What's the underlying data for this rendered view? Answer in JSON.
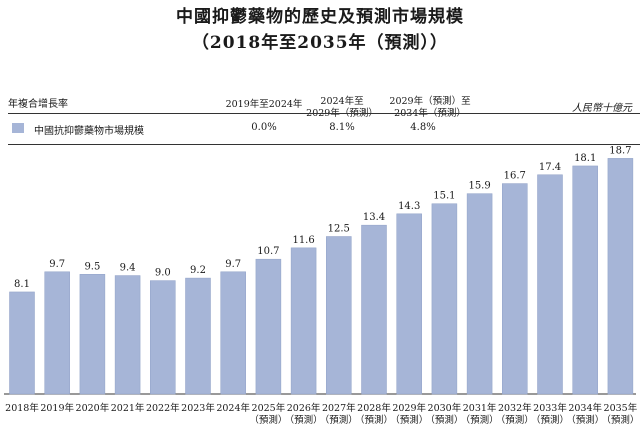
{
  "title": "中國抑鬱藥物的歷史及預測市場規模",
  "subtitle": "（2018年至2035年（預測））",
  "cagr_section": {
    "row_label": "年複合增長率",
    "periods": [
      "2019年至2024年",
      "2024年至\n2029年（預測）",
      "2029年（預測）至\n2034年（預測）"
    ],
    "values": [
      "0.0%",
      "8.1%",
      "4.8%"
    ]
  },
  "unit_label": "人民幣十億元",
  "colors": {
    "bar": "#a6b5d7",
    "bar_edge": "#8fa0c6"
  },
  "chart_data": {
    "type": "bar",
    "title": "中國抑鬱藥物的歷史及預測市場規模",
    "ylabel": "人民幣十億元",
    "ylim": [
      0,
      20
    ],
    "grid": false,
    "legend": "top-left",
    "series": [
      {
        "name": "中國抗抑鬱藥物市場規模",
        "values": [
          8.1,
          9.7,
          9.5,
          9.4,
          9.0,
          9.2,
          9.7,
          10.7,
          11.6,
          12.5,
          13.4,
          14.3,
          15.1,
          15.9,
          16.7,
          17.4,
          18.1,
          18.7
        ]
      }
    ],
    "categories": [
      "2018年",
      "2019年",
      "2020年",
      "2021年",
      "2022年",
      "2023年",
      "2024年",
      "2025年",
      "2026年",
      "2027年",
      "2028年",
      "2029年",
      "2030年",
      "2031年",
      "2032年",
      "2033年",
      "2034年",
      "2035年"
    ],
    "forecast_label": "（預測）",
    "forecast_from_index": 7
  }
}
